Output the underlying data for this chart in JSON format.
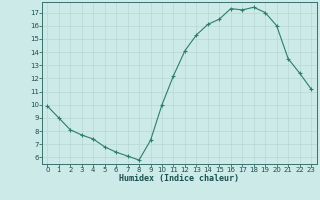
{
  "xlabel": "Humidex (Indice chaleur)",
  "x": [
    0,
    1,
    2,
    3,
    4,
    5,
    6,
    7,
    8,
    9,
    10,
    11,
    12,
    13,
    14,
    15,
    16,
    17,
    18,
    19,
    20,
    21,
    22,
    23
  ],
  "y": [
    9.9,
    9.0,
    8.1,
    7.7,
    7.4,
    6.8,
    6.4,
    6.1,
    5.8,
    7.3,
    10.0,
    12.2,
    14.1,
    15.3,
    16.1,
    16.5,
    17.3,
    17.2,
    17.4,
    17.0,
    16.0,
    13.5,
    12.4,
    11.2
  ],
  "line_color": "#2e7d6e",
  "marker": "+",
  "bg_color": "#cceae7",
  "grid_color": "#b8d8d4",
  "axis_label_color": "#1a5050",
  "tick_label_color": "#1a5050",
  "ylim": [
    5.5,
    17.8
  ],
  "yticks": [
    6,
    7,
    8,
    9,
    10,
    11,
    12,
    13,
    14,
    15,
    16,
    17
  ],
  "xlim": [
    -0.5,
    23.5
  ],
  "xticks": [
    0,
    1,
    2,
    3,
    4,
    5,
    6,
    7,
    8,
    9,
    10,
    11,
    12,
    13,
    14,
    15,
    16,
    17,
    18,
    19,
    20,
    21,
    22,
    23
  ]
}
